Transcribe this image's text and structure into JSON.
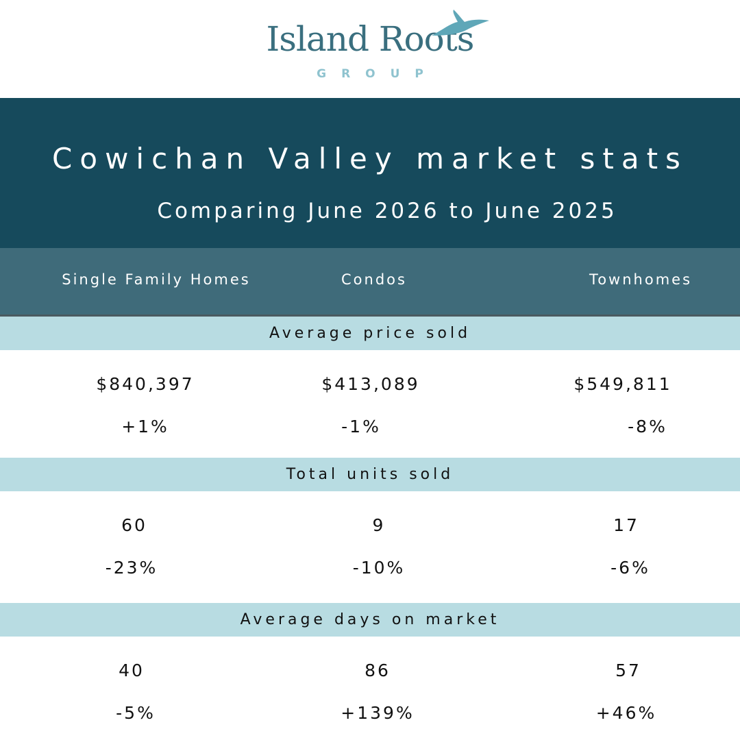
{
  "logo": {
    "name": "Island Roots",
    "tagline": "GROUP"
  },
  "header": {
    "title": "Cowichan Valley market stats",
    "subtitle": "Comparing June 2026 to June 2025"
  },
  "columns": [
    "Single Family Homes",
    "Condos",
    "Townhomes"
  ],
  "sections": [
    {
      "label": "Average price sold",
      "values": [
        "$840,397",
        "$413,089",
        "$549,811"
      ],
      "changes": [
        "+1%",
        "-1%",
        "-8%"
      ]
    },
    {
      "label": "Total units sold",
      "values": [
        "60",
        "9",
        "17"
      ],
      "changes": [
        "-23%",
        "-10%",
        "-6%"
      ]
    },
    {
      "label": "Average days on market",
      "values": [
        "40",
        "86",
        "57"
      ],
      "changes": [
        "-5%",
        "+139%",
        "+46%"
      ]
    }
  ]
}
